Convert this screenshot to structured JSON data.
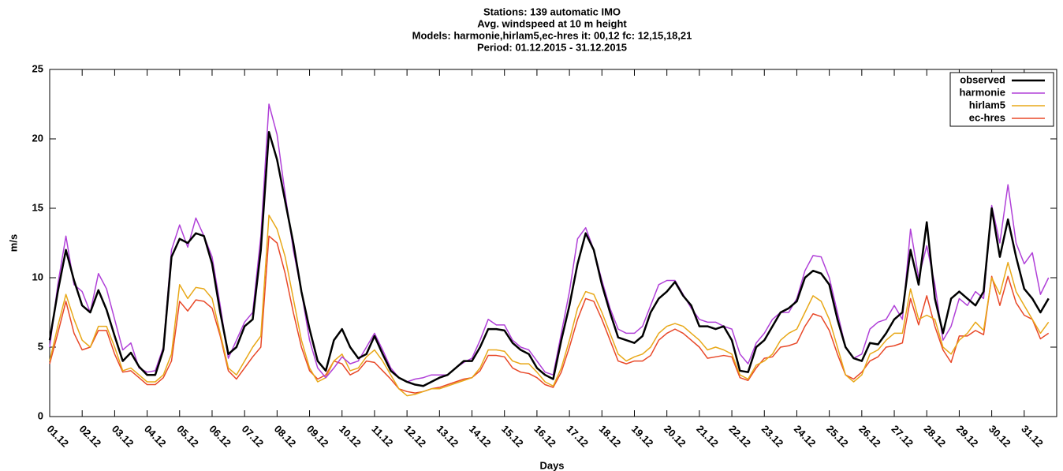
{
  "chart_data": {
    "type": "line",
    "title": [
      "Stations: 139 automatic IMO",
      "Avg. windspeed at 10 m height",
      "Models: harmonie,hirlam5,ec-hres it: 00,12 fc: 12,15,18,21",
      "Period: 01.12.2015 - 31.12.2015"
    ],
    "x_label": "Days",
    "y_label": "m/s",
    "xlim": [
      0,
      31
    ],
    "ylim": [
      0,
      25
    ],
    "yticks": [
      0,
      5,
      10,
      15,
      20,
      25
    ],
    "xticks": [
      {
        "value": 0,
        "label": "01.12"
      },
      {
        "value": 1,
        "label": "02.12"
      },
      {
        "value": 2,
        "label": "03.12"
      },
      {
        "value": 3,
        "label": "04.12"
      },
      {
        "value": 4,
        "label": "05.12"
      },
      {
        "value": 5,
        "label": "06.12"
      },
      {
        "value": 6,
        "label": "07.12"
      },
      {
        "value": 7,
        "label": "08.12"
      },
      {
        "value": 8,
        "label": "09.12"
      },
      {
        "value": 9,
        "label": "10.12"
      },
      {
        "value": 10,
        "label": "11.12"
      },
      {
        "value": 11,
        "label": "12.12"
      },
      {
        "value": 12,
        "label": "13.12"
      },
      {
        "value": 13,
        "label": "14.12"
      },
      {
        "value": 14,
        "label": "15.12"
      },
      {
        "value": 15,
        "label": "16.12"
      },
      {
        "value": 16,
        "label": "17.12"
      },
      {
        "value": 17,
        "label": "18.12"
      },
      {
        "value": 18,
        "label": "19.12"
      },
      {
        "value": 19,
        "label": "20.12"
      },
      {
        "value": 20,
        "label": "21.12"
      },
      {
        "value": 21,
        "label": "22.12"
      },
      {
        "value": 22,
        "label": "23.12"
      },
      {
        "value": 23,
        "label": "24.12"
      },
      {
        "value": 24,
        "label": "25.12"
      },
      {
        "value": 25,
        "label": "26.12"
      },
      {
        "value": 26,
        "label": "27.12"
      },
      {
        "value": 27,
        "label": "28.12"
      },
      {
        "value": 28,
        "label": "29.12"
      },
      {
        "value": 29,
        "label": "30.12"
      },
      {
        "value": 30,
        "label": "31.12"
      }
    ],
    "grid": false,
    "legend": "top-right",
    "x": [
      0,
      0.25,
      0.5,
      0.75,
      1,
      1.25,
      1.5,
      1.75,
      2,
      2.25,
      2.5,
      2.75,
      3,
      3.25,
      3.5,
      3.75,
      4,
      4.25,
      4.5,
      4.75,
      5,
      5.25,
      5.5,
      5.75,
      6,
      6.25,
      6.5,
      6.75,
      7,
      7.25,
      7.5,
      7.75,
      8,
      8.25,
      8.5,
      8.75,
      9,
      9.25,
      9.5,
      9.75,
      10,
      10.25,
      10.5,
      10.75,
      11,
      11.25,
      11.5,
      11.75,
      12,
      12.25,
      12.5,
      12.75,
      13,
      13.25,
      13.5,
      13.75,
      14,
      14.25,
      14.5,
      14.75,
      15,
      15.25,
      15.5,
      15.75,
      16,
      16.25,
      16.5,
      16.75,
      17,
      17.25,
      17.5,
      17.75,
      18,
      18.25,
      18.5,
      18.75,
      19,
      19.25,
      19.5,
      19.75,
      20,
      20.25,
      20.5,
      20.75,
      21,
      21.25,
      21.5,
      21.75,
      22,
      22.25,
      22.5,
      22.75,
      23,
      23.25,
      23.5,
      23.75,
      24,
      24.25,
      24.5,
      24.75,
      25,
      25.25,
      25.5,
      25.75,
      26,
      26.25,
      26.5,
      26.75,
      27,
      27.25,
      27.5,
      27.75,
      28,
      28.25,
      28.5,
      28.75,
      29,
      29.25,
      29.5,
      29.75,
      30,
      30.25,
      30.5,
      30.75
    ],
    "series": [
      {
        "name": "observed",
        "color": "#000000",
        "width": 2.5,
        "values": [
          5.5,
          9.0,
          12.0,
          9.8,
          8.0,
          7.5,
          9.1,
          7.7,
          5.8,
          4.0,
          4.6,
          3.6,
          3.0,
          3.0,
          4.8,
          11.5,
          12.8,
          12.5,
          13.2,
          13.0,
          11.0,
          7.5,
          4.5,
          5.0,
          6.5,
          7.0,
          12.0,
          20.5,
          18.5,
          15.5,
          12.5,
          9.0,
          6.3,
          4.0,
          3.3,
          5.5,
          6.3,
          5.0,
          4.2,
          4.5,
          5.8,
          4.5,
          3.3,
          2.8,
          2.5,
          2.3,
          2.2,
          2.5,
          2.8,
          3.0,
          3.5,
          4.0,
          4.0,
          5.0,
          6.3,
          6.3,
          6.2,
          5.3,
          4.8,
          4.5,
          3.5,
          3.0,
          2.7,
          5.5,
          8.0,
          11.0,
          13.2,
          12.0,
          9.5,
          7.5,
          5.7,
          5.5,
          5.3,
          5.8,
          7.5,
          8.5,
          9.0,
          9.7,
          8.7,
          8.0,
          6.5,
          6.5,
          6.3,
          6.5,
          5.5,
          3.3,
          3.2,
          5.0,
          5.5,
          6.5,
          7.5,
          7.8,
          8.3,
          10.0,
          10.5,
          10.3,
          9.5,
          7.0,
          5.0,
          4.2,
          4.0,
          5.3,
          5.2,
          6.0,
          7.0,
          7.5,
          12.0,
          9.5,
          14.0,
          8.5,
          6.0,
          8.5,
          9.0,
          8.5,
          8.0,
          9.0,
          15.0,
          11.5,
          14.2,
          11.5,
          9.2,
          8.5,
          7.5,
          8.5
        ]
      },
      {
        "name": "harmonie",
        "color": "#b040d8",
        "width": 1.5,
        "values": [
          5,
          9.5,
          13,
          9.5,
          9,
          7.5,
          10.3,
          9.2,
          7,
          4.8,
          5.3,
          3.5,
          3.2,
          3.3,
          5,
          12,
          13.8,
          12.2,
          14.3,
          13.0,
          11.5,
          8.0,
          4.2,
          5.5,
          6.8,
          7.5,
          13,
          22.5,
          20.3,
          16.0,
          12.0,
          9.0,
          5.5,
          3.5,
          2.8,
          3.5,
          4.3,
          3.8,
          4.0,
          5.0,
          6.0,
          4.8,
          3.5,
          2.8,
          2.5,
          2.7,
          2.8,
          3.0,
          3.0,
          3.0,
          3.5,
          3.9,
          4.2,
          5.5,
          7.0,
          6.6,
          6.6,
          5.5,
          5.0,
          4.8,
          4.0,
          3.2,
          3.0,
          6.0,
          9.0,
          12.8,
          13.6,
          12.0,
          9.8,
          7.8,
          6.3,
          6.0,
          6.0,
          6.5,
          8.0,
          9.5,
          9.8,
          9.8,
          8.8,
          7.8,
          7.0,
          6.8,
          6.8,
          6.5,
          6.3,
          4.5,
          3.8,
          5.3,
          6.0,
          7.0,
          7.5,
          7.5,
          8.5,
          10.5,
          11.6,
          11.5,
          10.0,
          7.5,
          5.0,
          4.2,
          4.5,
          6.3,
          6.8,
          7.0,
          8.0,
          7.0,
          13.5,
          10.0,
          12.3,
          9.5,
          5.5,
          6.5,
          8.5,
          8.0,
          9.0,
          8.5,
          15.2,
          12.5,
          16.7,
          12.5,
          11.0,
          11.8,
          8.8,
          10.0
        ]
      },
      {
        "name": "hirlam5",
        "color": "#e8a818",
        "width": 1.5,
        "values": [
          4,
          6.5,
          8.8,
          7.0,
          5.5,
          5.0,
          6.5,
          6.5,
          5.0,
          3.3,
          3.5,
          3.0,
          2.5,
          2.5,
          3.0,
          4.5,
          9.5,
          8.5,
          9.3,
          9.2,
          8.5,
          6.0,
          3.5,
          3.0,
          4.0,
          5.0,
          5.8,
          14.5,
          13.5,
          11.5,
          8.5,
          5.5,
          3.5,
          2.5,
          2.8,
          4.0,
          4.5,
          3.3,
          3.5,
          4.3,
          4.8,
          4.0,
          3.0,
          2.0,
          1.5,
          1.6,
          1.8,
          2.0,
          2.0,
          2.2,
          2.4,
          2.6,
          2.8,
          3.5,
          4.8,
          4.8,
          4.7,
          4.0,
          3.8,
          3.8,
          3.2,
          2.5,
          2.2,
          3.5,
          5.5,
          7.8,
          9.0,
          8.8,
          7.5,
          6.0,
          4.5,
          4.0,
          4.3,
          4.5,
          5.0,
          6.0,
          6.5,
          6.7,
          6.5,
          6.0,
          5.5,
          4.8,
          5.0,
          4.8,
          4.5,
          3.0,
          2.7,
          3.7,
          4.0,
          4.5,
          5.5,
          6.0,
          6.3,
          7.5,
          8.7,
          8.3,
          7.0,
          5.0,
          3.0,
          2.5,
          3.0,
          4.5,
          4.8,
          5.5,
          6.0,
          6.0,
          9.2,
          7.0,
          7.3,
          7.0,
          5.0,
          4.5,
          5.5,
          6.0,
          6.8,
          6.2,
          10.0,
          8.8,
          11.1,
          9.0,
          8.0,
          7.0,
          6.0,
          6.8
        ]
      },
      {
        "name": "ec-hres",
        "color": "#e84828",
        "width": 1.5,
        "values": [
          3.8,
          6.0,
          8.3,
          6.0,
          4.8,
          5.0,
          6.2,
          6.2,
          4.5,
          3.2,
          3.3,
          2.8,
          2.3,
          2.3,
          2.8,
          4.0,
          8.3,
          7.6,
          8.4,
          8.3,
          7.8,
          5.8,
          3.3,
          2.7,
          3.5,
          4.3,
          5.0,
          13.0,
          12.5,
          10.3,
          7.5,
          5.0,
          3.3,
          2.7,
          3.0,
          4.0,
          3.8,
          3.0,
          3.3,
          4.0,
          3.9,
          3.3,
          2.7,
          2.0,
          1.8,
          1.7,
          1.8,
          2.0,
          2.1,
          2.3,
          2.5,
          2.7,
          2.8,
          3.3,
          4.4,
          4.4,
          4.3,
          3.5,
          3.2,
          3.1,
          2.8,
          2.3,
          2.1,
          3.2,
          5.0,
          7.0,
          8.5,
          8.3,
          7.0,
          5.5,
          4.0,
          3.8,
          4.0,
          4.0,
          4.4,
          5.5,
          6.0,
          6.3,
          6.0,
          5.5,
          5.0,
          4.2,
          4.3,
          4.4,
          4.3,
          2.8,
          2.6,
          3.5,
          4.2,
          4.3,
          5.0,
          5.1,
          5.3,
          6.5,
          7.4,
          7.2,
          6.2,
          4.5,
          3.0,
          2.7,
          3.2,
          4.0,
          4.3,
          5.0,
          5.1,
          5.3,
          8.5,
          6.6,
          8.7,
          6.5,
          4.8,
          3.9,
          5.8,
          5.8,
          6.2,
          5.9,
          10.1,
          8.0,
          10.1,
          8.2,
          7.3,
          7.0,
          5.6,
          6.0
        ]
      }
    ]
  }
}
